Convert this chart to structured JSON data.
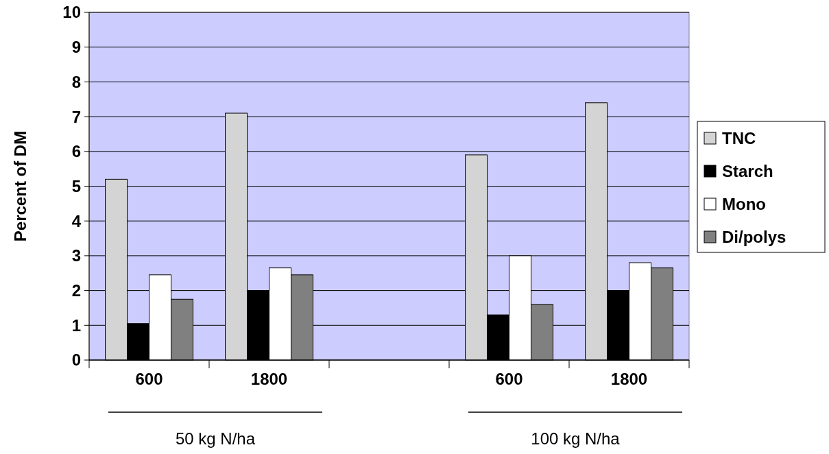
{
  "chart_data": {
    "type": "bar",
    "ylabel": "Percent of DM",
    "categories": [
      "600",
      "1800",
      null,
      "600",
      "1800"
    ],
    "series": [
      {
        "name": "TNC",
        "color": "#d4d4d4",
        "values": [
          5.2,
          7.1,
          null,
          5.9,
          7.4
        ]
      },
      {
        "name": "Starch",
        "color": "#000000",
        "values": [
          1.05,
          2.0,
          null,
          1.3,
          2.0
        ]
      },
      {
        "name": "Mono",
        "color": "#ffffff",
        "values": [
          2.45,
          2.65,
          null,
          3.0,
          2.8
        ]
      },
      {
        "name": "Di/polys",
        "color": "#808080",
        "values": [
          1.75,
          2.45,
          null,
          1.6,
          2.65
        ]
      }
    ],
    "ylim": [
      0,
      10
    ],
    "yticks": [
      0,
      1,
      2,
      3,
      4,
      5,
      6,
      7,
      8,
      9,
      10
    ],
    "grid": "y",
    "legend": "right",
    "annotations": [
      "50 kg N/ha",
      "100 kg N/ha"
    ]
  }
}
